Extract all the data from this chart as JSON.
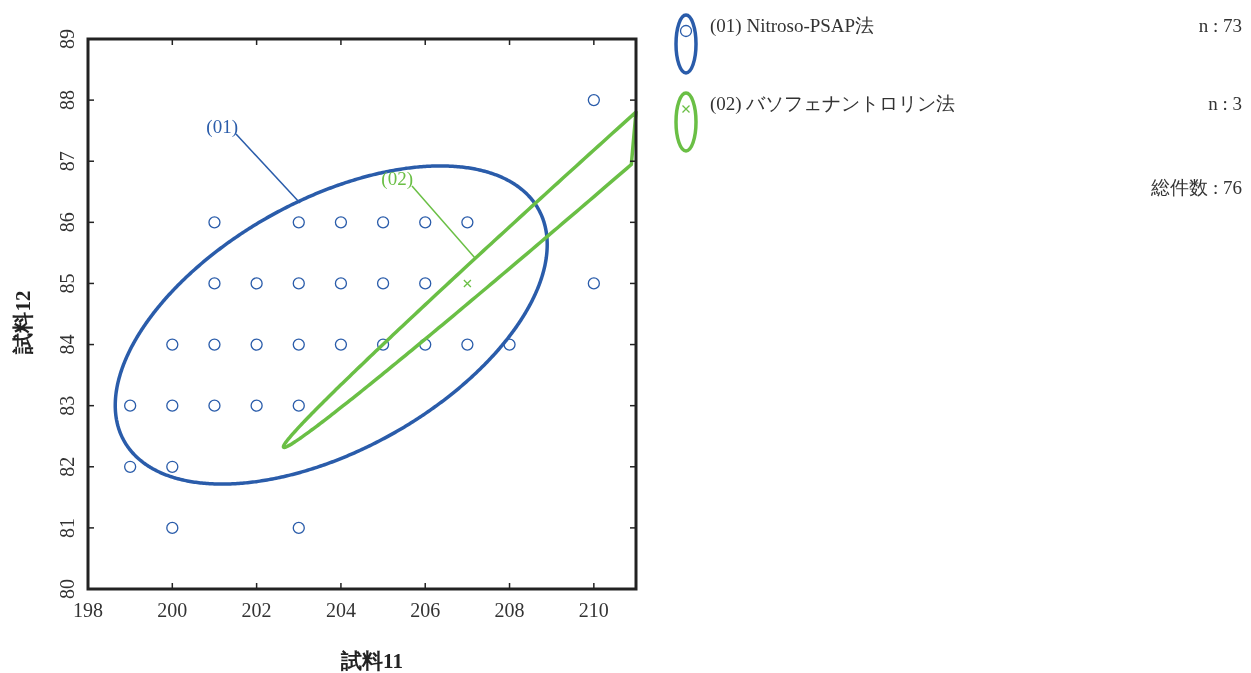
{
  "chart_data": {
    "type": "scatter",
    "xlabel": "試料11",
    "ylabel": "試料12",
    "xlim": [
      198,
      211
    ],
    "ylim": [
      80,
      89
    ],
    "xticks": [
      198,
      200,
      202,
      204,
      206,
      208,
      210
    ],
    "yticks": [
      80,
      81,
      82,
      83,
      84,
      85,
      86,
      87,
      88,
      89
    ],
    "grid": false,
    "legend": "right",
    "series": [
      {
        "name": "(01) Nitroso-PSAP法",
        "color": "#2a5caa",
        "marker": "circle",
        "x": [
          210,
          201,
          203,
          204,
          205,
          206,
          207,
          201,
          202,
          203,
          204,
          205,
          206,
          210,
          200,
          201,
          202,
          203,
          204,
          205,
          206,
          207,
          208,
          199,
          200,
          201,
          202,
          203,
          199,
          200,
          200,
          203
        ],
        "values": [
          88,
          86,
          86,
          86,
          86,
          86,
          86,
          85,
          85,
          85,
          85,
          85,
          85,
          85,
          84,
          84,
          84,
          84,
          84,
          84,
          84,
          84,
          84,
          83,
          83,
          83,
          83,
          83,
          82,
          82,
          81,
          81
        ]
      },
      {
        "name": "(02) バソフェナントロリン法",
        "color": "#6abf45",
        "marker": "cross",
        "x": [
          207
        ],
        "values": [
          85
        ]
      }
    ],
    "annotations": [
      "(01)",
      "(02)",
      "n : 73",
      "n : 3",
      "総件数 : 76"
    ]
  }
}
